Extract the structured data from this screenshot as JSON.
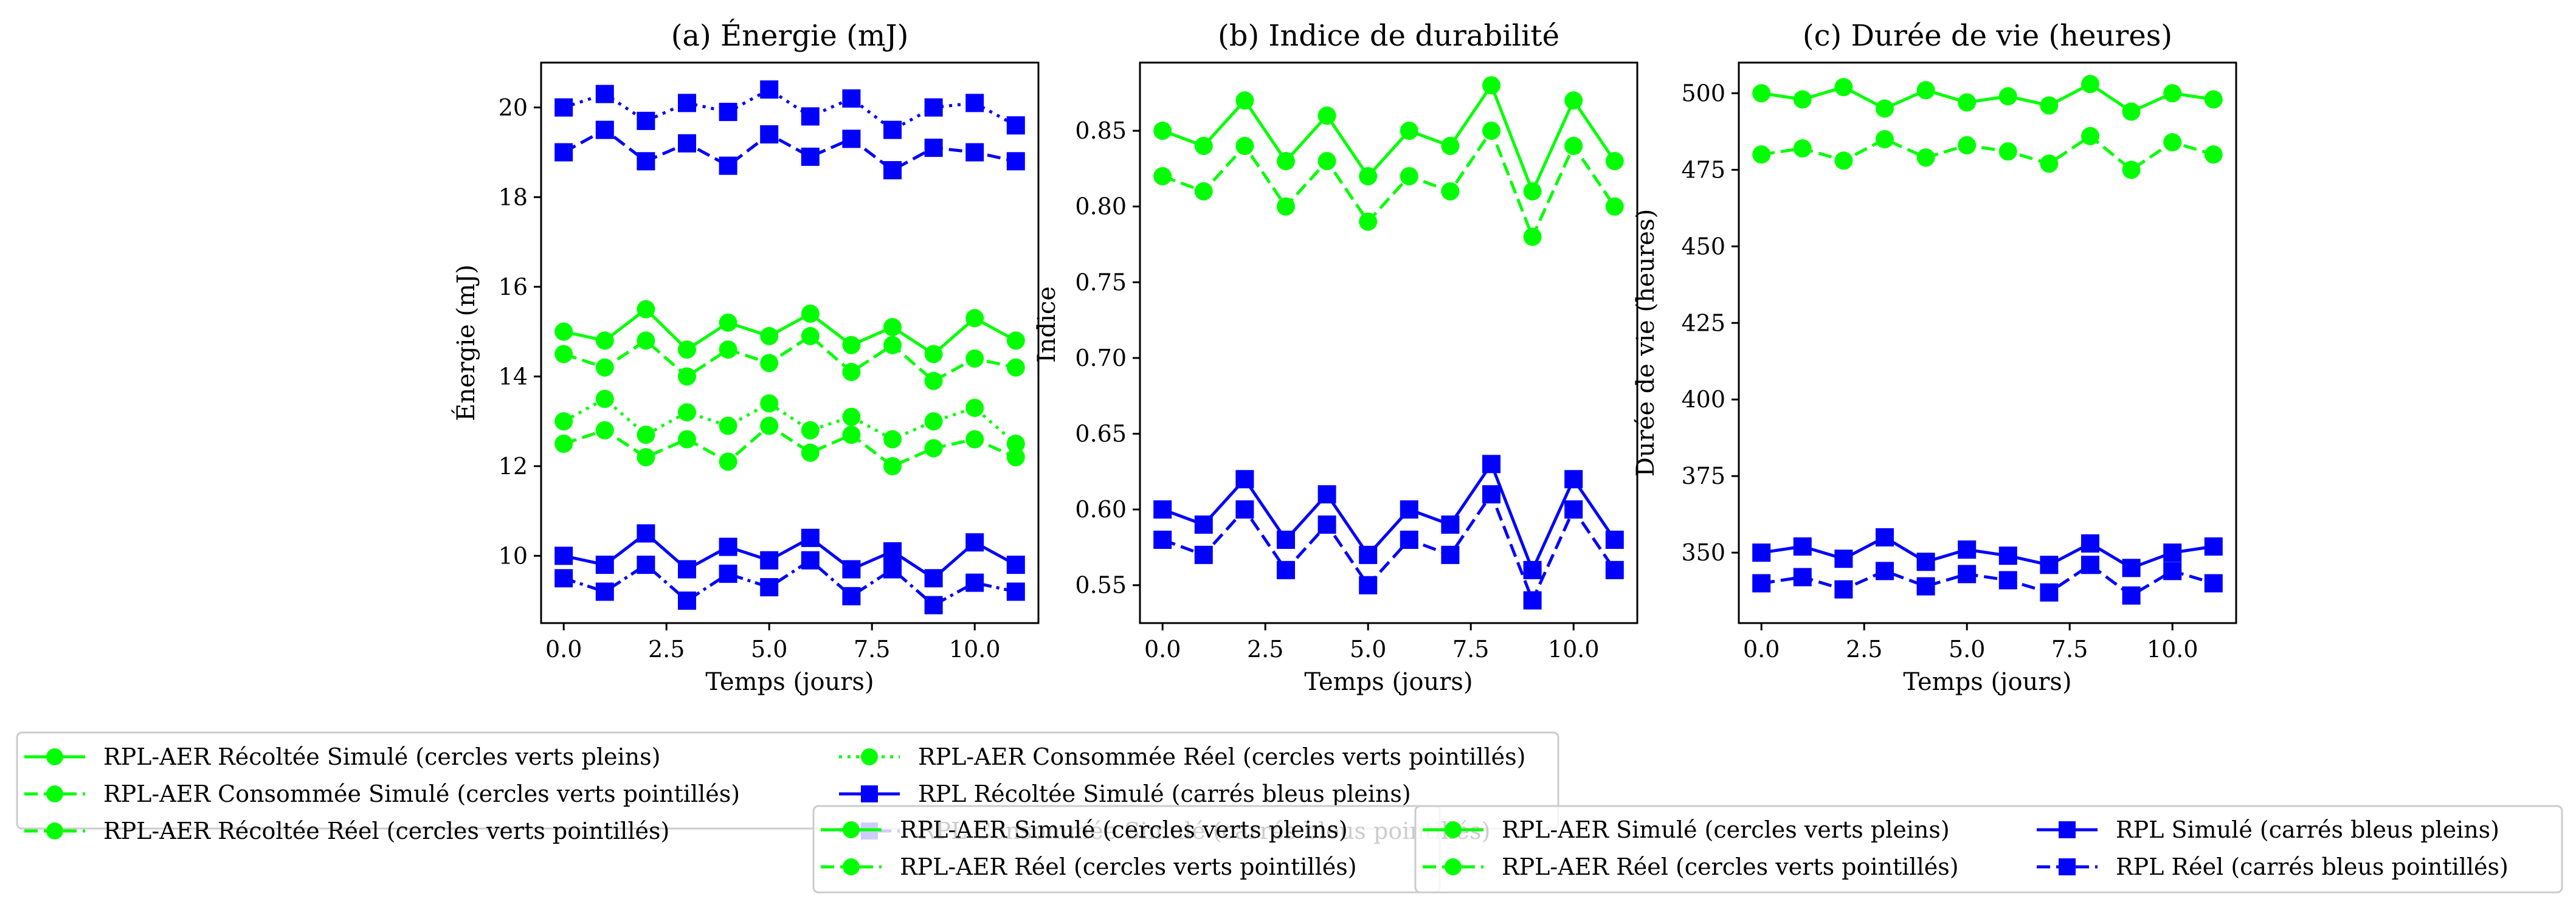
{
  "colors": {
    "green": "#00ff00",
    "blue": "#0000ff"
  },
  "chart_data": [
    {
      "type": "line",
      "title": "(a) Énergie (mJ)",
      "xlabel": "Temps (jours)",
      "ylabel": "Énergie (mJ)",
      "xlim": [
        -0.55,
        11.55
      ],
      "ylim": [
        8.5,
        21.0
      ],
      "xticks": [
        0,
        2.5,
        5,
        7.5,
        10
      ],
      "xtick_labels": [
        "0.0",
        "2.5",
        "5.0",
        "7.5",
        "10.0"
      ],
      "yticks": [
        10,
        12,
        14,
        16,
        18,
        20
      ],
      "ytick_labels": [
        "10",
        "12",
        "14",
        "16",
        "18",
        "20"
      ],
      "x": [
        0,
        1,
        2,
        3,
        4,
        5,
        6,
        7,
        8,
        9,
        10,
        11
      ],
      "series": [
        {
          "color": "green",
          "marker": "circle",
          "dash": "solid",
          "values": [
            15.0,
            14.8,
            15.5,
            14.6,
            15.2,
            14.9,
            15.4,
            14.7,
            15.1,
            14.5,
            15.3,
            14.8
          ]
        },
        {
          "color": "green",
          "marker": "circle",
          "dash": "dashed",
          "values": [
            14.5,
            14.2,
            14.8,
            14.0,
            14.6,
            14.3,
            14.9,
            14.1,
            14.7,
            13.9,
            14.4,
            14.2
          ]
        },
        {
          "color": "green",
          "marker": "circle",
          "dash": "dotted",
          "values": [
            13.0,
            13.5,
            12.7,
            13.2,
            12.9,
            13.4,
            12.8,
            13.1,
            12.6,
            13.0,
            13.3,
            12.5
          ]
        },
        {
          "color": "green",
          "marker": "circle",
          "dash": "dashed",
          "values": [
            12.5,
            12.8,
            12.2,
            12.6,
            12.1,
            12.9,
            12.3,
            12.7,
            12.0,
            12.4,
            12.6,
            12.2
          ]
        },
        {
          "color": "blue",
          "marker": "square",
          "dash": "dotted",
          "values": [
            20.0,
            20.3,
            19.7,
            20.1,
            19.9,
            20.4,
            19.8,
            20.2,
            19.5,
            20.0,
            20.1,
            19.6
          ]
        },
        {
          "color": "blue",
          "marker": "square",
          "dash": "dashed",
          "values": [
            19.0,
            19.5,
            18.8,
            19.2,
            18.7,
            19.4,
            18.9,
            19.3,
            18.6,
            19.1,
            19.0,
            18.8
          ]
        },
        {
          "color": "blue",
          "marker": "square",
          "dash": "solid",
          "values": [
            10.0,
            9.8,
            10.5,
            9.7,
            10.2,
            9.9,
            10.4,
            9.7,
            10.1,
            9.5,
            10.3,
            9.8
          ]
        },
        {
          "color": "blue",
          "marker": "square",
          "dash": "dashdot",
          "values": [
            9.5,
            9.2,
            9.8,
            9.0,
            9.6,
            9.3,
            9.9,
            9.1,
            9.7,
            8.9,
            9.4,
            9.2
          ]
        }
      ]
    },
    {
      "type": "line",
      "title": "(b) Indice de durabilité",
      "xlabel": "Temps (jours)",
      "ylabel": "Indice",
      "xlim": [
        -0.55,
        11.55
      ],
      "ylim": [
        0.525,
        0.895
      ],
      "xticks": [
        0,
        2.5,
        5,
        7.5,
        10
      ],
      "xtick_labels": [
        "0.0",
        "2.5",
        "5.0",
        "7.5",
        "10.0"
      ],
      "yticks": [
        0.55,
        0.6,
        0.65,
        0.7,
        0.75,
        0.8,
        0.85
      ],
      "ytick_labels": [
        "0.55",
        "0.60",
        "0.65",
        "0.70",
        "0.75",
        "0.80",
        "0.85"
      ],
      "x": [
        0,
        1,
        2,
        3,
        4,
        5,
        6,
        7,
        8,
        9,
        10,
        11
      ],
      "series": [
        {
          "color": "green",
          "marker": "circle",
          "dash": "solid",
          "values": [
            0.85,
            0.84,
            0.87,
            0.83,
            0.86,
            0.82,
            0.85,
            0.84,
            0.88,
            0.81,
            0.87,
            0.83
          ]
        },
        {
          "color": "green",
          "marker": "circle",
          "dash": "dashed",
          "values": [
            0.82,
            0.81,
            0.84,
            0.8,
            0.83,
            0.79,
            0.82,
            0.81,
            0.85,
            0.78,
            0.84,
            0.8
          ]
        },
        {
          "color": "blue",
          "marker": "square",
          "dash": "solid",
          "values": [
            0.6,
            0.59,
            0.62,
            0.58,
            0.61,
            0.57,
            0.6,
            0.59,
            0.63,
            0.56,
            0.62,
            0.58
          ]
        },
        {
          "color": "blue",
          "marker": "square",
          "dash": "dashed",
          "values": [
            0.58,
            0.57,
            0.6,
            0.56,
            0.59,
            0.55,
            0.58,
            0.57,
            0.61,
            0.54,
            0.6,
            0.56
          ]
        }
      ]
    },
    {
      "type": "line",
      "title": "(c) Durée de vie (heures)",
      "xlabel": "Temps (jours)",
      "ylabel": "Durée de vie (heures)",
      "xlim": [
        -0.55,
        11.55
      ],
      "ylim": [
        327,
        510
      ],
      "xticks": [
        0,
        2.5,
        5,
        7.5,
        10
      ],
      "xtick_labels": [
        "0.0",
        "2.5",
        "5.0",
        "7.5",
        "10.0"
      ],
      "yticks": [
        350,
        375,
        400,
        425,
        450,
        475,
        500
      ],
      "ytick_labels": [
        "350",
        "375",
        "400",
        "425",
        "450",
        "475",
        "500"
      ],
      "x": [
        0,
        1,
        2,
        3,
        4,
        5,
        6,
        7,
        8,
        9,
        10,
        11
      ],
      "series": [
        {
          "color": "green",
          "marker": "circle",
          "dash": "solid",
          "values": [
            500,
            498,
            502,
            495,
            501,
            497,
            499,
            496,
            503,
            494,
            500,
            498
          ]
        },
        {
          "color": "green",
          "marker": "circle",
          "dash": "dashed",
          "values": [
            480,
            482,
            478,
            485,
            479,
            483,
            481,
            477,
            486,
            475,
            484,
            480
          ]
        },
        {
          "color": "blue",
          "marker": "square",
          "dash": "solid",
          "values": [
            350,
            352,
            348,
            355,
            347,
            351,
            349,
            346,
            353,
            345,
            350,
            352
          ]
        },
        {
          "color": "blue",
          "marker": "square",
          "dash": "dashed",
          "values": [
            340,
            342,
            338,
            344,
            339,
            343,
            341,
            337,
            346,
            336,
            344,
            340
          ]
        }
      ]
    }
  ],
  "legends": [
    {
      "columns": 2,
      "entries": [
        {
          "label": "RPL-AER Récoltée Simulé (cercles verts pleins)",
          "color": "green",
          "marker": "circle",
          "dash": "solid"
        },
        {
          "label": "RPL-AER Consommée Simulé (cercles verts pointillés)",
          "color": "green",
          "marker": "circle",
          "dash": "dashed"
        },
        {
          "label": "RPL-AER Récoltée Réel (cercles verts pointillés)",
          "color": "green",
          "marker": "circle",
          "dash": "dashed"
        },
        {
          "label": "RPL-AER Consommée Réel (cercles verts pointillés)",
          "color": "green",
          "marker": "circle",
          "dash": "dotted"
        },
        {
          "label": "RPL Récoltée Simulé (carrés bleus pleins)",
          "color": "blue",
          "marker": "square",
          "dash": "solid"
        },
        {
          "label": "RPL Consommée Simulé (carrés bleus pointillés)",
          "color": "blue",
          "marker": "square",
          "dash": "dashed"
        }
      ]
    },
    {
      "columns": 1,
      "entries": [
        {
          "label": "RPL-AER Simulé (cercles verts pleins)",
          "color": "green",
          "marker": "circle",
          "dash": "solid"
        },
        {
          "label": "RPL-AER Réel (cercles verts pointillés)",
          "color": "green",
          "marker": "circle",
          "dash": "dashed"
        }
      ]
    },
    {
      "columns": 2,
      "entries": [
        {
          "label": "RPL-AER Simulé (cercles verts pleins)",
          "color": "green",
          "marker": "circle",
          "dash": "solid"
        },
        {
          "label": "RPL-AER Réel (cercles verts pointillés)",
          "color": "green",
          "marker": "circle",
          "dash": "dashed"
        },
        {
          "label": "RPL Simulé (carrés bleus pleins)",
          "color": "blue",
          "marker": "square",
          "dash": "solid"
        },
        {
          "label": "RPL Réel (carrés bleus pointillés)",
          "color": "blue",
          "marker": "square",
          "dash": "dashed"
        }
      ]
    }
  ]
}
